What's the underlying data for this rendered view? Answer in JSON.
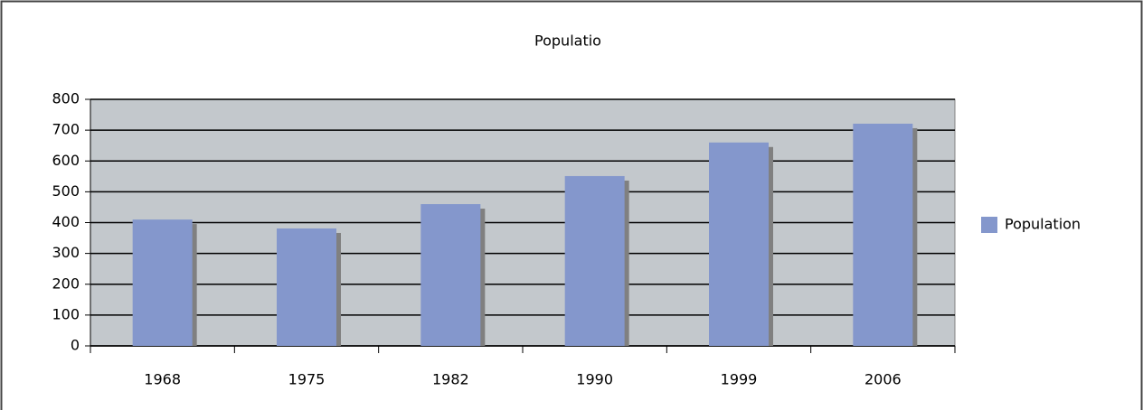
{
  "chart_data": {
    "type": "bar",
    "title": "Populatio",
    "categories": [
      "1968",
      "1975",
      "1982",
      "1990",
      "1999",
      "2006"
    ],
    "series": [
      {
        "name": "Population",
        "color": "#8497cc",
        "values": [
          410,
          381,
          460,
          551,
          660,
          721
        ]
      }
    ],
    "ylim": [
      0,
      800
    ],
    "yticks": [
      0,
      100,
      200,
      300,
      400,
      500,
      600,
      700,
      800
    ],
    "grid": true,
    "legend": "right"
  }
}
